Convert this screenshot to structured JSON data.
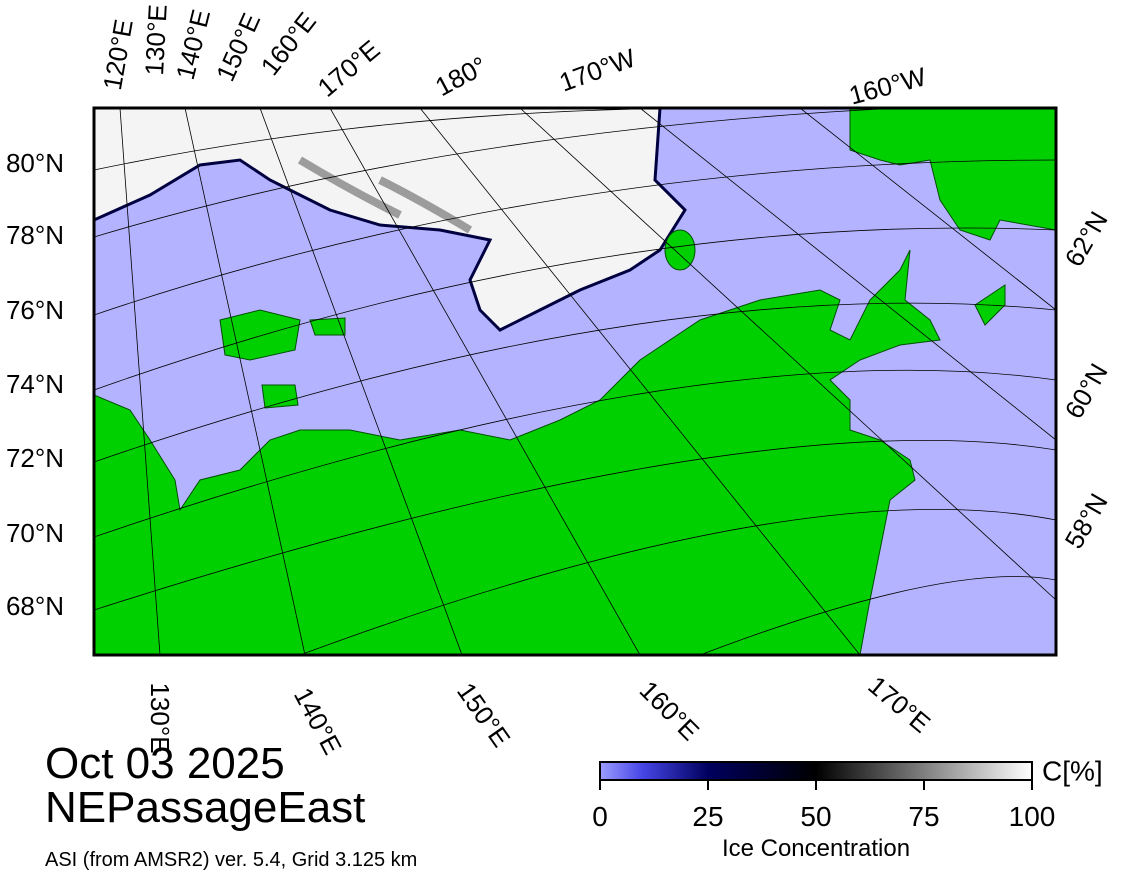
{
  "map": {
    "top_labels": [
      "120°E",
      "130°E",
      "140°E",
      "150°E",
      "160°E",
      "170°E",
      "180°",
      "170°W",
      "160°W"
    ],
    "left_labels": [
      "80°N",
      "78°N",
      "76°N",
      "74°N",
      "72°N",
      "70°N",
      "68°N"
    ],
    "right_labels": [
      "62°N",
      "60°N",
      "58°N"
    ],
    "bottom_labels": [
      "130°E",
      "140°E",
      "150°E",
      "160°E",
      "170°E"
    ]
  },
  "footer": {
    "date": "Oct 03 2025",
    "region": "NEPassageEast",
    "source": "ASI (from AMSR2) ver. 5.4,  Grid 3.125 km"
  },
  "colorbar": {
    "range": [
      0,
      100
    ],
    "ticks": [
      0,
      25,
      50,
      75,
      100
    ],
    "unit": "C[%]",
    "label": "Ice Concentration"
  }
}
